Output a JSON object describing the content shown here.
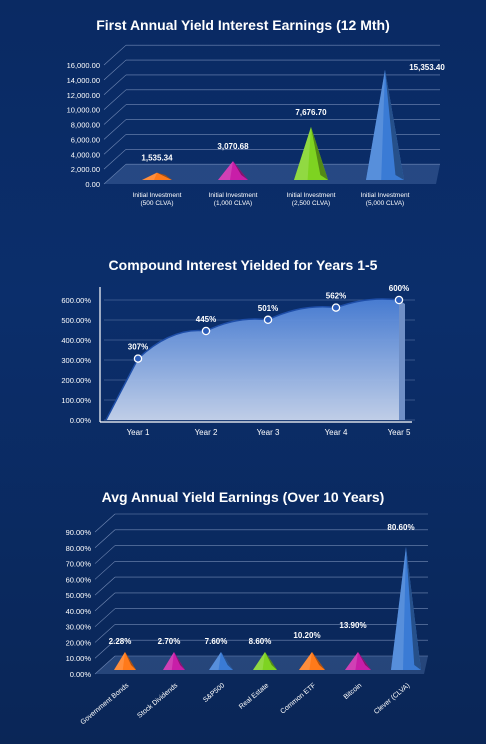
{
  "chart_data": [
    {
      "type": "bar",
      "title": "First Annual Yield Interest Earnings (12 Mth)",
      "categories": [
        [
          "Initial Investment",
          "(500 CLVA)"
        ],
        [
          "Initial Investment",
          "(1,000 CLVA)"
        ],
        [
          "Initial Investment",
          "(2,500 CLVA)"
        ],
        [
          "Initial Investment",
          "(5,000 CLVA)"
        ]
      ],
      "values": [
        1535.34,
        3070.68,
        7676.7,
        15353.4
      ],
      "value_labels": [
        "1,535.34",
        "3,070.68",
        "7,676.70",
        "15,353.40"
      ],
      "yticks": [
        "0.00",
        "2,000.00",
        "4,000.00",
        "6,000.00",
        "8,000.00",
        "10,000.00",
        "12,000.00",
        "14,000.00",
        "16,000.00"
      ],
      "ylim": [
        0,
        16000
      ],
      "colors": [
        "#ff7a1a",
        "#c81ea8",
        "#7ed321",
        "#3a7bd5"
      ],
      "grid": true
    },
    {
      "type": "area",
      "title": "Compound Interest Yielded for Years 1-5",
      "x": [
        "Year 1",
        "Year 2",
        "Year 3",
        "Year 4",
        "Year 5"
      ],
      "values": [
        307,
        445,
        501,
        562,
        600
      ],
      "value_labels": [
        "307%",
        "445%",
        "501%",
        "562%",
        "600%"
      ],
      "yticks": [
        "0.00%",
        "100.00%",
        "200.00%",
        "300.00%",
        "400.00%",
        "500.00%",
        "600.00%"
      ],
      "ylim": [
        0,
        600
      ],
      "grid": true
    },
    {
      "type": "bar",
      "title": "Avg Annual Yield Earnings (Over 10 Years)",
      "categories": [
        "Government Bonds",
        "Stock Dividends",
        "S&P500",
        "Real Estate",
        "Common ETF",
        "Bitcoin",
        "Clever (CLVA)"
      ],
      "values": [
        2.28,
        2.7,
        7.6,
        8.6,
        10.2,
        13.9,
        80.6
      ],
      "value_labels": [
        "2.28%",
        "2.70%",
        "7.60%",
        "8.60%",
        "10.20%",
        "13.90%",
        "80.60%"
      ],
      "yticks": [
        "0.00%",
        "10.00%",
        "20.00%",
        "30.00%",
        "40.00%",
        "50.00%",
        "60.00%",
        "70.00%",
        "80.00%",
        "90.00%"
      ],
      "ylim": [
        0,
        90
      ],
      "colors": [
        "#ff7a1a",
        "#c81ea8",
        "#3a7bd5",
        "#7ed321",
        "#ff7a1a",
        "#c81ea8",
        "#3a7bd5"
      ],
      "grid": true
    }
  ]
}
